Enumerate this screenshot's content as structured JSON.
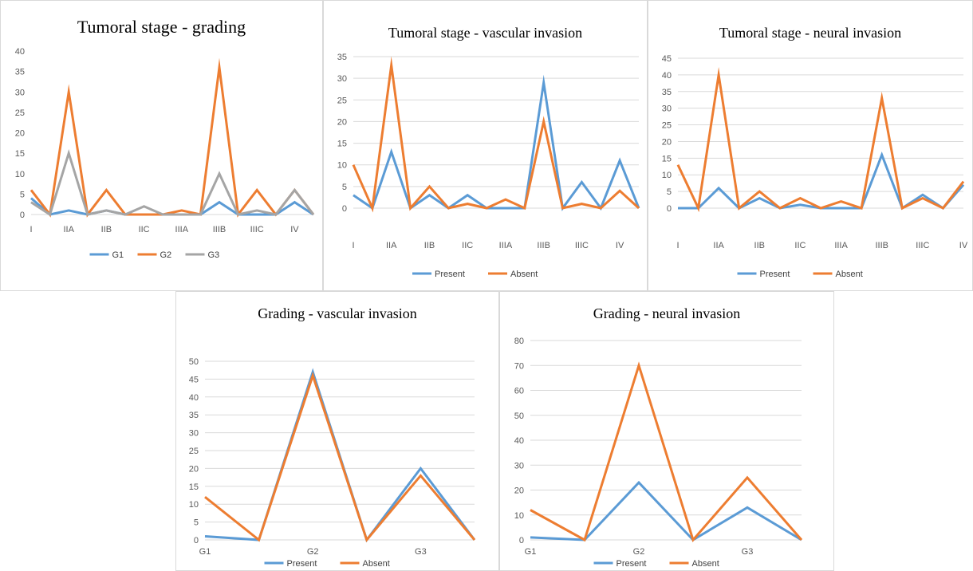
{
  "colors": {
    "blue": "#5B9BD5",
    "orange": "#ED7D31",
    "gray": "#A5A5A5",
    "grid": "#D9D9D9"
  },
  "chart_data": [
    {
      "type": "line",
      "title": "Tumoral stage - grading",
      "categories": [
        "I",
        "",
        "IIA",
        "",
        "IIB",
        "",
        "IIC",
        "",
        "IIIA",
        "",
        "IIIB",
        "",
        "IIIC",
        "",
        "IV",
        ""
      ],
      "series": [
        {
          "name": "G1",
          "color": "#5B9BD5",
          "values": [
            4,
            0,
            1,
            0,
            1,
            0,
            0,
            0,
            0,
            0,
            3,
            0,
            0,
            0,
            3,
            0
          ]
        },
        {
          "name": "G2",
          "color": "#ED7D31",
          "values": [
            6,
            0,
            30,
            0,
            6,
            0,
            0,
            0,
            1,
            0,
            36,
            0,
            6,
            0,
            6,
            0
          ]
        },
        {
          "name": "G3",
          "color": "#A5A5A5",
          "values": [
            3,
            0,
            15,
            0,
            1,
            0,
            2,
            0,
            0,
            0,
            10,
            0,
            1,
            0,
            6,
            0
          ]
        }
      ],
      "ylim": [
        0,
        40
      ],
      "ystep": 5,
      "grid": false,
      "legend": "bottom"
    },
    {
      "type": "line",
      "title": "Tumoral stage - vascular invasion",
      "categories": [
        "I",
        "",
        "IIA",
        "",
        "IIB",
        "",
        "IIC",
        "",
        "IIIA",
        "",
        "IIIB",
        "",
        "IIIC",
        "",
        "IV",
        ""
      ],
      "series": [
        {
          "name": "Present",
          "color": "#5B9BD5",
          "values": [
            3,
            0,
            13,
            0,
            3,
            0,
            3,
            0,
            0,
            0,
            29,
            0,
            6,
            0,
            11,
            0
          ]
        },
        {
          "name": "Absent",
          "color": "#ED7D31",
          "values": [
            10,
            0,
            33,
            0,
            5,
            0,
            1,
            0,
            2,
            0,
            20,
            0,
            1,
            0,
            4,
            0
          ]
        }
      ],
      "ylim": [
        0,
        35
      ],
      "ystep": 5,
      "grid": true,
      "legend": "bottom"
    },
    {
      "type": "line",
      "title": "Tumoral stage - neural invasion",
      "categories": [
        "I",
        "",
        "IIA",
        "",
        "IIB",
        "",
        "IIC",
        "",
        "IIIA",
        "",
        "IIIB",
        "",
        "IIIC",
        "",
        "IV"
      ],
      "series": [
        {
          "name": "Present",
          "color": "#5B9BD5",
          "values": [
            0,
            0,
            6,
            0,
            3,
            0,
            1,
            0,
            0,
            0,
            16,
            0,
            4,
            0,
            7
          ]
        },
        {
          "name": "Absent",
          "color": "#ED7D31",
          "values": [
            13,
            0,
            40,
            0,
            5,
            0,
            3,
            0,
            2,
            0,
            33,
            0,
            3,
            0,
            8
          ]
        }
      ],
      "ylim": [
        0,
        45
      ],
      "ystep": 5,
      "grid": true,
      "legend": "bottom"
    },
    {
      "type": "line",
      "title": "Grading - vascular invasion",
      "categories": [
        "G1",
        "",
        "G2",
        "",
        "G3",
        ""
      ],
      "series": [
        {
          "name": "Present",
          "color": "#5B9BD5",
          "values": [
            1,
            0,
            47,
            0,
            20,
            0
          ]
        },
        {
          "name": "Absent",
          "color": "#ED7D31",
          "values": [
            12,
            0,
            46,
            0,
            18,
            0
          ]
        }
      ],
      "ylim": [
        0,
        50
      ],
      "ystep": 5,
      "grid": true,
      "legend": "bottom"
    },
    {
      "type": "line",
      "title": "Grading - neural invasion",
      "categories": [
        "G1",
        "",
        "G2",
        "",
        "G3",
        ""
      ],
      "series": [
        {
          "name": "Present",
          "color": "#5B9BD5",
          "values": [
            1,
            0,
            23,
            0,
            13,
            0
          ]
        },
        {
          "name": "Absent",
          "color": "#ED7D31",
          "values": [
            12,
            0,
            70,
            0,
            25,
            0
          ]
        }
      ],
      "ylim": [
        0,
        80
      ],
      "ystep": 10,
      "grid": true,
      "legend": "bottom"
    }
  ]
}
